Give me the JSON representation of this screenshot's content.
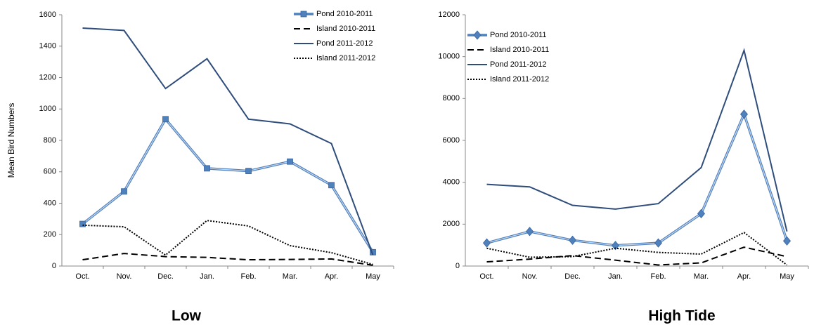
{
  "chart_data": [
    {
      "type": "line",
      "title": "Low",
      "y_label": "Mean Bird Numbers",
      "categories": [
        "Oct.",
        "Nov.",
        "Dec.",
        "Jan.",
        "Feb.",
        "Mar.",
        "Apr.",
        "May"
      ],
      "ylim": [
        0,
        1600
      ],
      "yticks": [
        0,
        200,
        400,
        600,
        800,
        1000,
        1200,
        1400,
        1600
      ],
      "legend": "upper right",
      "series": [
        {
          "name": "Pond 2010-2011",
          "color": "#4f81bd",
          "style": "double",
          "marker": "square",
          "values": [
            268,
            475,
            935,
            622,
            605,
            665,
            515,
            88
          ]
        },
        {
          "name": "Island 2010-2011",
          "color": "#000000",
          "style": "dashed",
          "values": [
            40,
            80,
            60,
            55,
            40,
            42,
            45,
            5
          ]
        },
        {
          "name": "Pond 2011-2012",
          "color": "#2e4d7b",
          "style": "solid",
          "values": [
            1515,
            1500,
            1130,
            1320,
            935,
            905,
            780,
            70
          ]
        },
        {
          "name": "Island 2011-2012",
          "color": "#000000",
          "style": "dotted",
          "values": [
            260,
            250,
            70,
            290,
            255,
            130,
            85,
            10
          ]
        }
      ]
    },
    {
      "type": "line",
      "title": "High Tide",
      "categories": [
        "Oct.",
        "Nov.",
        "Dec.",
        "Jan.",
        "Feb.",
        "Mar.",
        "Apr.",
        "May"
      ],
      "ylim": [
        0,
        12000
      ],
      "yticks": [
        0,
        2000,
        4000,
        6000,
        8000,
        10000,
        12000
      ],
      "legend": "upper left",
      "series": [
        {
          "name": "Pond 2010-2011",
          "color": "#4f81bd",
          "style": "double",
          "marker": "diamond",
          "values": [
            1100,
            1650,
            1230,
            980,
            1100,
            2500,
            7250,
            1200
          ]
        },
        {
          "name": "Island 2010-2011",
          "color": "#000000",
          "style": "dashed",
          "values": [
            200,
            330,
            500,
            280,
            50,
            150,
            900,
            450
          ]
        },
        {
          "name": "Pond 2011-2012",
          "color": "#2e4d7b",
          "style": "solid",
          "values": [
            3900,
            3780,
            2900,
            2720,
            2980,
            4700,
            10300,
            1650
          ]
        },
        {
          "name": "Island 2011-2012",
          "color": "#000000",
          "style": "dotted",
          "values": [
            850,
            420,
            450,
            850,
            650,
            570,
            1600,
            50
          ]
        }
      ]
    }
  ]
}
